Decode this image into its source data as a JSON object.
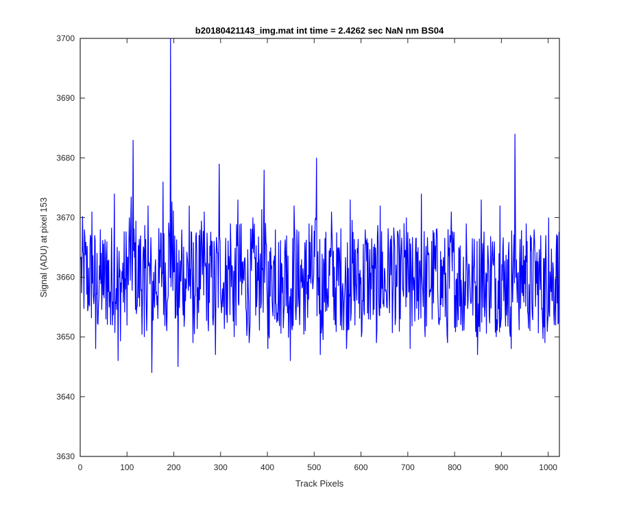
{
  "chart_data": {
    "type": "line",
    "title": "b20180421143_img.mat int time = 2.4262 sec  NaN nm BS04",
    "xlabel": "Track Pixels",
    "ylabel": "Signal (ADU) at pixel 153",
    "xlim": [
      0,
      1024
    ],
    "ylim": [
      3630,
      3700
    ],
    "xticks": [
      0,
      100,
      200,
      300,
      400,
      500,
      600,
      700,
      800,
      900,
      1000
    ],
    "yticks": [
      3630,
      3640,
      3650,
      3660,
      3670,
      3680,
      3690,
      3700
    ],
    "x_tick_labels": [
      "0",
      "100",
      "200",
      "300",
      "400",
      "500",
      "600",
      "700",
      "800",
      "900",
      "1000"
    ],
    "y_tick_labels": [
      "3630",
      "3640",
      "3650",
      "3660",
      "3670",
      "3680",
      "3690",
      "3700"
    ],
    "grid": false,
    "series": [
      {
        "color": "#0000ff",
        "x_start": 1,
        "x_end": 1024,
        "mean_approx": 3659.5,
        "values_sampled_every_8": [
          3663,
          3668,
          3655,
          3671,
          3648,
          3662,
          3657,
          3666,
          3652,
          3674,
          3646,
          3661,
          3658,
          3670,
          3683,
          3655,
          3667,
          3650,
          3672,
          3644,
          3663,
          3659,
          3676,
          3651,
          3700,
          3661,
          3645,
          3668,
          3656,
          3672,
          3649,
          3664,
          3658,
          3671,
          3653,
          3666,
          3647,
          3679,
          3655,
          3662,
          3669,
          3650,
          3673,
          3657,
          3661,
          3649,
          3670,
          3655,
          3664,
          3678,
          3648,
          3662,
          3668,
          3653,
          3660,
          3667,
          3646,
          3672,
          3655,
          3663,
          3651,
          3669,
          3658,
          3680,
          3647,
          3662,
          3656,
          3671,
          3652,
          3665,
          3659,
          3648,
          3673,
          3656,
          3664,
          3650,
          3668,
          3657,
          3662,
          3649,
          3672,
          3655,
          3661,
          3667,
          3652,
          3663,
          3658,
          3670,
          3648,
          3660,
          3656,
          3674,
          3650,
          3664,
          3659,
          3668,
          3653,
          3662,
          3649,
          3671,
          3657,
          3665,
          3651,
          3669,
          3658,
          3662,
          3647,
          3673,
          3655,
          3661,
          3666,
          3650,
          3672,
          3656,
          3663,
          3648,
          3684,
          3655,
          3662,
          3669,
          3651,
          3665,
          3657,
          3660,
          3649,
          3670,
          3656,
          3664
        ]
      }
    ]
  }
}
